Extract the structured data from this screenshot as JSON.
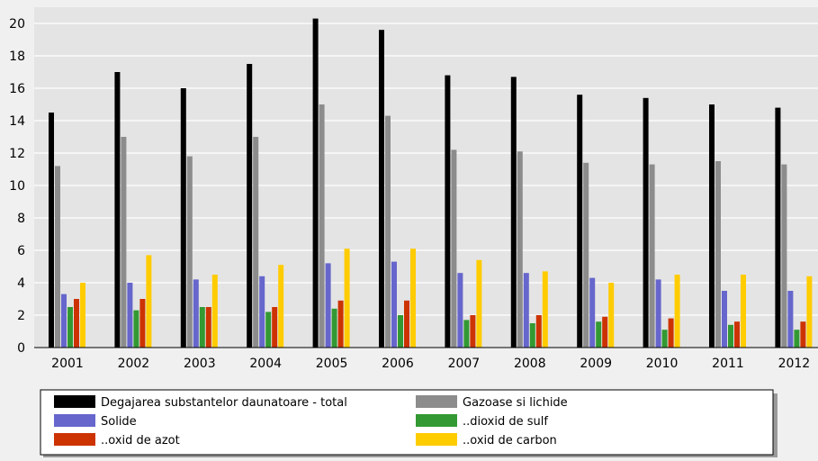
{
  "chart_data": {
    "type": "bar",
    "categories": [
      "2001",
      "2002",
      "2003",
      "2004",
      "2005",
      "2006",
      "2007",
      "2008",
      "2009",
      "2010",
      "2011",
      "2012"
    ],
    "ylim": [
      0,
      21
    ],
    "yticks": [
      0,
      2,
      4,
      6,
      8,
      10,
      12,
      14,
      16,
      18,
      20
    ],
    "grid": true,
    "legend_position": "bottom",
    "series": [
      {
        "name": "Degajarea substantelor daunatoare - total",
        "color": "#000000",
        "values": [
          14.5,
          17.0,
          16.0,
          17.5,
          20.3,
          19.6,
          16.8,
          16.7,
          15.6,
          15.4,
          15.0,
          14.8
        ]
      },
      {
        "name": "Gazoase si lichide",
        "color": "#8c8c8c",
        "values": [
          11.2,
          13.0,
          11.8,
          13.0,
          15.0,
          14.3,
          12.2,
          12.1,
          11.4,
          11.3,
          11.5,
          11.3
        ]
      },
      {
        "name": "Solide",
        "color": "#6666cc",
        "values": [
          3.3,
          4.0,
          4.2,
          4.4,
          5.2,
          5.3,
          4.6,
          4.6,
          4.3,
          4.2,
          3.5,
          3.5
        ]
      },
      {
        "name": "..dioxid de sulf",
        "color": "#339933",
        "values": [
          2.5,
          2.3,
          2.5,
          2.2,
          2.4,
          2.0,
          1.7,
          1.5,
          1.6,
          1.1,
          1.4,
          1.1
        ]
      },
      {
        "name": "..oxid de azot",
        "color": "#cc3300",
        "values": [
          3.0,
          3.0,
          2.5,
          2.5,
          2.9,
          2.9,
          2.0,
          2.0,
          1.9,
          1.8,
          1.6,
          1.6
        ]
      },
      {
        "name": "..oxid de carbon",
        "color": "#ffcc00",
        "values": [
          4.0,
          5.7,
          4.5,
          5.1,
          6.1,
          6.1,
          5.4,
          4.7,
          4.0,
          4.5,
          4.5,
          4.4
        ]
      }
    ]
  }
}
